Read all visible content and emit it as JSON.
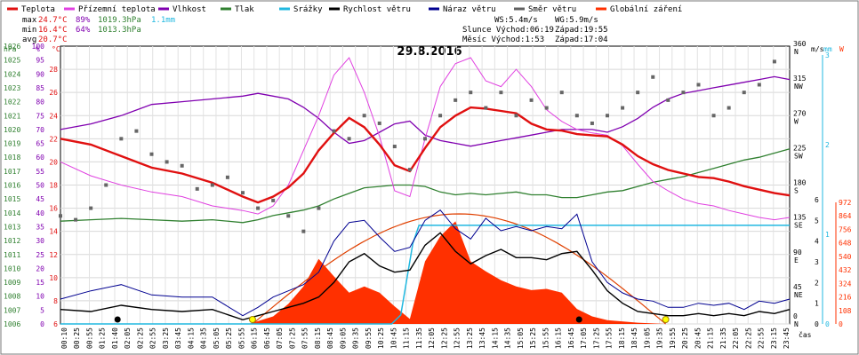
{
  "chart_data": {
    "type": "line",
    "title": "29.8.2016",
    "legend": [
      {
        "name": "Teplota",
        "color": "#e01010"
      },
      {
        "name": "Přízemní teplota",
        "color": "#e040e0"
      },
      {
        "name": "Vlhkost",
        "color": "#8000b0"
      },
      {
        "name": "Tlak",
        "color": "#308030"
      },
      {
        "name": "Srážky",
        "color": "#20b8e0"
      },
      {
        "name": "Rychlost větru",
        "color": "#000000"
      },
      {
        "name": "Náraz větru",
        "color": "#000090"
      },
      {
        "name": "Směr větru",
        "color": "#606060"
      },
      {
        "name": "Globální záření",
        "color": "#ff3000"
      }
    ],
    "stats": {
      "max_label": "max",
      "max_temp": "24.7°C",
      "max_hum": "89%",
      "max_press": "1019.3hPa",
      "rain": "1.1mm",
      "min_label": "min",
      "min_temp": "16.4°C",
      "min_hum": "64%",
      "min_press": "1013.3hPa",
      "avg_label": "avg",
      "avg_temp": "20.7°C"
    },
    "info": {
      "ws": "WS:5.4m/s",
      "wg": "WG:5.9m/s",
      "sun": "Slunce Východ:06:19",
      "sun_set": "Západ:19:55",
      "moon": "Měsíc  Východ:1:53",
      "moon_set": "Západ:17:04"
    },
    "axes": {
      "hpa_label": "hPa",
      "pct_label": "%",
      "c_label": "°C",
      "ms_label": "m/s",
      "mm_label": "mm",
      "w_label": "W",
      "hpa_ticks": [
        "1026",
        "1025",
        "1024",
        "1023",
        "1022",
        "1021",
        "1020",
        "1019",
        "1018",
        "1017",
        "1016",
        "1015",
        "1014",
        "1013",
        "1012",
        "1011",
        "1010",
        "1009",
        "1008",
        "1007",
        "1006"
      ],
      "pct_ticks": [
        "100",
        "95",
        "90",
        "85",
        "80",
        "75",
        "70",
        "65",
        "60",
        "55",
        "50",
        "45",
        "40",
        "35",
        "30",
        "25",
        "20",
        "15",
        "10",
        "5",
        "0"
      ],
      "c_ticks": [
        "28",
        "26",
        "24",
        "22",
        "20",
        "18",
        "16",
        "14",
        "12",
        "10",
        "8",
        "6"
      ],
      "dir_ticks": [
        "360",
        "315",
        "270",
        "225",
        "180",
        "135",
        "90",
        "45",
        "0"
      ],
      "dir_names": [
        "N",
        "NW",
        "W",
        "SW",
        "S",
        "SE",
        "E",
        "NE",
        "N"
      ],
      "ms_ticks": [
        "6",
        "5",
        "4",
        "3",
        "2",
        "1",
        "0"
      ],
      "mm_ticks": [
        "3",
        "2",
        "1",
        "0"
      ],
      "w_ticks": [
        "972",
        "864",
        "756",
        "648",
        "540",
        "432",
        "324",
        "216",
        "108",
        "0"
      ],
      "time_label": "čas",
      "time_ticks": [
        "00:10",
        "00:25",
        "00:55",
        "01:25",
        "01:40",
        "02:05",
        "02:25",
        "02:55",
        "03:25",
        "03:45",
        "04:15",
        "04:35",
        "05:05",
        "05:25",
        "05:55",
        "06:15",
        "06:45",
        "07:05",
        "07:25",
        "07:55",
        "08:15",
        "08:45",
        "09:05",
        "09:35",
        "09:55",
        "10:25",
        "10:45",
        "11:15",
        "11:35",
        "12:05",
        "12:25",
        "12:55",
        "13:25",
        "13:45",
        "14:15",
        "14:35",
        "15:05",
        "15:25",
        "15:55",
        "16:15",
        "16:45",
        "17:05",
        "17:25",
        "17:55",
        "18:15",
        "18:45",
        "19:05",
        "19:35",
        "19:55",
        "20:25",
        "20:45",
        "21:15",
        "21:35",
        "22:05",
        "22:25",
        "22:55",
        "23:15",
        "23:45"
      ]
    },
    "series": [
      {
        "name": "Teplota",
        "unit": "°C",
        "x_hours": [
          0,
          1,
          2,
          3,
          4,
          5,
          6,
          6.5,
          7,
          7.5,
          8,
          8.5,
          9,
          9.5,
          10,
          10.5,
          11,
          11.5,
          12,
          12.5,
          13,
          13.5,
          14,
          14.5,
          15,
          15.5,
          16,
          16.5,
          17,
          17.5,
          18,
          18.5,
          19,
          19.5,
          20,
          20.5,
          21,
          21.5,
          22,
          22.5,
          23,
          23.5,
          24
        ],
        "values": [
          22,
          21.5,
          20.5,
          19.5,
          19,
          18.2,
          17,
          16.5,
          17,
          17.8,
          19,
          21,
          22.5,
          23.8,
          23,
          21.5,
          19.7,
          19.2,
          21.2,
          23,
          24,
          24.7,
          24.6,
          24.4,
          24.2,
          23.3,
          22.8,
          22.7,
          22.4,
          22.3,
          22.2,
          21.5,
          20.5,
          19.8,
          19.3,
          19,
          18.7,
          18.6,
          18.3,
          17.9,
          17.6,
          17.3,
          17.1
        ]
      },
      {
        "name": "Přízemní teplota",
        "unit": "°C",
        "x_hours": [
          0,
          1,
          2,
          3,
          4,
          5,
          6,
          6.5,
          7,
          7.5,
          8,
          8.5,
          9,
          9.5,
          10,
          10.5,
          11,
          11.5,
          12,
          12.5,
          13,
          13.5,
          14,
          14.5,
          15,
          15.5,
          16,
          16.5,
          17,
          17.5,
          18,
          18.5,
          19,
          19.5,
          20,
          20.5,
          21,
          21.5,
          22,
          22.5,
          23,
          23.5,
          24
        ],
        "values": [
          20,
          18.8,
          18,
          17.4,
          17,
          16.2,
          15.8,
          15.5,
          16.2,
          18,
          21,
          24,
          27.5,
          29,
          26,
          22.2,
          17.5,
          17,
          22,
          26.5,
          28.5,
          29,
          27,
          26.5,
          28,
          26.5,
          24.5,
          23.5,
          22.8,
          22.5,
          22.3,
          21.4,
          19.8,
          18.3,
          17.5,
          16.8,
          16.4,
          16.2,
          15.8,
          15.5,
          15.2,
          15,
          15.2
        ]
      },
      {
        "name": "Vlhkost",
        "unit": "%",
        "x_hours": [
          0,
          1,
          2,
          3,
          4,
          5,
          6,
          6.5,
          7,
          7.5,
          8,
          8.5,
          9,
          9.5,
          10,
          10.5,
          11,
          11.5,
          12,
          12.5,
          13,
          13.5,
          14,
          14.5,
          15,
          15.5,
          16,
          16.5,
          17,
          17.5,
          18,
          18.5,
          19,
          19.5,
          20,
          20.5,
          21,
          21.5,
          22,
          22.5,
          23,
          23.5,
          24
        ],
        "values": [
          70,
          72,
          75,
          79,
          80,
          81,
          82,
          83,
          82,
          81,
          78,
          74,
          69,
          65,
          66,
          69,
          72,
          73,
          68,
          66,
          65,
          64,
          65,
          66,
          67,
          68,
          69,
          70,
          70,
          70,
          69,
          71,
          74,
          78,
          81,
          83,
          84,
          85,
          86,
          87,
          88,
          89,
          88
        ]
      },
      {
        "name": "Tlak",
        "unit": "hPa",
        "x_hours": [
          0,
          1,
          2,
          3,
          4,
          5,
          6,
          6.5,
          7,
          7.5,
          8,
          8.5,
          9,
          9.5,
          10,
          10.5,
          11,
          11.5,
          12,
          12.5,
          13,
          13.5,
          14,
          14.5,
          15,
          15.5,
          16,
          16.5,
          17,
          17.5,
          18,
          18.5,
          19,
          19.5,
          20,
          20.5,
          21,
          21.5,
          22,
          22.5,
          23,
          23.5,
          24
        ],
        "values": [
          1013.4,
          1013.5,
          1013.6,
          1013.5,
          1013.4,
          1013.5,
          1013.3,
          1013.5,
          1013.8,
          1014,
          1014.2,
          1014.5,
          1015,
          1015.4,
          1015.8,
          1015.9,
          1016,
          1016,
          1015.9,
          1015.5,
          1015.3,
          1015.4,
          1015.3,
          1015.4,
          1015.5,
          1015.3,
          1015.3,
          1015.1,
          1015.1,
          1015.3,
          1015.5,
          1015.6,
          1015.9,
          1016.2,
          1016.4,
          1016.6,
          1016.9,
          1017.2,
          1017.5,
          1017.8,
          1018,
          1018.3,
          1018.6
        ]
      },
      {
        "name": "Srážky",
        "unit": "mm",
        "x_hours": [
          0,
          10.9,
          11.2,
          11.4,
          11.6,
          11.8,
          12,
          24
        ],
        "values": [
          0,
          0,
          0.1,
          0.5,
          0.9,
          1.1,
          1.1,
          1.1
        ]
      },
      {
        "name": "Globální záření",
        "unit": "W",
        "x_hours": [
          6.2,
          7,
          7.5,
          8,
          8.5,
          9,
          9.5,
          10,
          10.5,
          11,
          11.5,
          12,
          12.5,
          13,
          13.5,
          14,
          14.5,
          15,
          15.5,
          16,
          16.5,
          17,
          17.5,
          18,
          19,
          19.9
        ],
        "values": [
          0,
          60,
          160,
          300,
          520,
          380,
          250,
          300,
          250,
          140,
          40,
          500,
          700,
          820,
          500,
          420,
          350,
          300,
          270,
          280,
          250,
          120,
          60,
          30,
          10,
          0
        ]
      },
      {
        "name": "Rychlost větru",
        "unit": "m/s",
        "x_hours": [
          0,
          1,
          2,
          3,
          4,
          5,
          6,
          6.5,
          7,
          7.5,
          8,
          8.5,
          9,
          9.5,
          10,
          10.5,
          11,
          11.5,
          12,
          12.5,
          13,
          13.5,
          14,
          14.5,
          15,
          15.5,
          16,
          16.5,
          17,
          17.5,
          18,
          18.5,
          19,
          19.5,
          20,
          20.5,
          21,
          21.5,
          22,
          22.5,
          23,
          23.5,
          24
        ],
        "values": [
          0.7,
          0.6,
          0.9,
          0.7,
          0.6,
          0.7,
          0.2,
          0.4,
          0.6,
          0.8,
          1,
          1.3,
          2,
          3,
          3.4,
          2.8,
          2.5,
          2.6,
          3.8,
          4.4,
          3.5,
          2.9,
          3.3,
          3.6,
          3.2,
          3.2,
          3.1,
          3.4,
          3.5,
          2.6,
          1.6,
          1,
          0.6,
          0.5,
          0.4,
          0.4,
          0.5,
          0.4,
          0.5,
          0.4,
          0.6,
          0.5,
          0.7
        ]
      },
      {
        "name": "Náraz větru",
        "unit": "m/s",
        "x_hours": [
          0,
          1,
          2,
          3,
          4,
          5,
          6,
          6.5,
          7,
          7.5,
          8,
          8.5,
          9,
          9.5,
          10,
          10.5,
          11,
          11.5,
          12,
          12.5,
          13,
          13.5,
          14,
          14.5,
          15,
          15.5,
          16,
          16.5,
          17,
          17.5,
          18,
          18.5,
          19,
          19.5,
          20,
          20.5,
          21,
          21.5,
          22,
          22.5,
          23,
          23.5,
          24
        ],
        "values": [
          1.2,
          1.6,
          1.9,
          1.4,
          1.3,
          1.3,
          0.4,
          0.8,
          1.3,
          1.6,
          1.9,
          2.5,
          4,
          4.9,
          5,
          4.2,
          3.5,
          3.7,
          5,
          5.5,
          4.6,
          4.1,
          5.1,
          4.5,
          4.7,
          4.5,
          4.7,
          4.6,
          5.3,
          3,
          2,
          1.5,
          1.2,
          1.1,
          0.8,
          0.8,
          1,
          0.9,
          1,
          0.7,
          1.1,
          1,
          1.2
        ]
      },
      {
        "name": "Směr větru",
        "unit": "°",
        "x_hours": [
          0,
          0.5,
          1,
          1.5,
          2,
          2.5,
          3,
          3.5,
          4,
          4.5,
          5,
          5.5,
          6,
          6.5,
          7,
          7.5,
          8,
          8.5,
          9,
          9.5,
          10,
          10.5,
          11,
          11.5,
          12,
          12.5,
          13,
          13.5,
          14,
          14.5,
          15,
          15.5,
          16,
          16.5,
          17,
          17.5,
          18,
          18.5,
          19,
          19.5,
          20,
          20.5,
          21,
          21.5,
          22,
          22.5,
          23,
          23.5
        ],
        "values": [
          140,
          135,
          150,
          180,
          240,
          250,
          220,
          210,
          205,
          175,
          180,
          190,
          170,
          150,
          160,
          140,
          120,
          150,
          250,
          240,
          270,
          260,
          230,
          200,
          240,
          270,
          290,
          300,
          280,
          300,
          270,
          290,
          280,
          300,
          270,
          260,
          270,
          280,
          300,
          320,
          290,
          300,
          310,
          270,
          280,
          300,
          310,
          340
        ]
      }
    ],
    "markers": {
      "moonrise_hour": 1.88,
      "sunrise_hour": 6.32,
      "moonset_hour": 17.07,
      "sunset_hour": 19.92
    },
    "ranges": {
      "temp": [
        6,
        30
      ],
      "hum": [
        0,
        100
      ],
      "press": [
        1006,
        1026
      ],
      "wind": [
        0,
        6
      ],
      "dir": [
        0,
        360
      ],
      "rain": [
        0,
        3
      ],
      "rad": [
        0,
        972
      ],
      "x_hours": [
        0,
        24
      ]
    }
  }
}
